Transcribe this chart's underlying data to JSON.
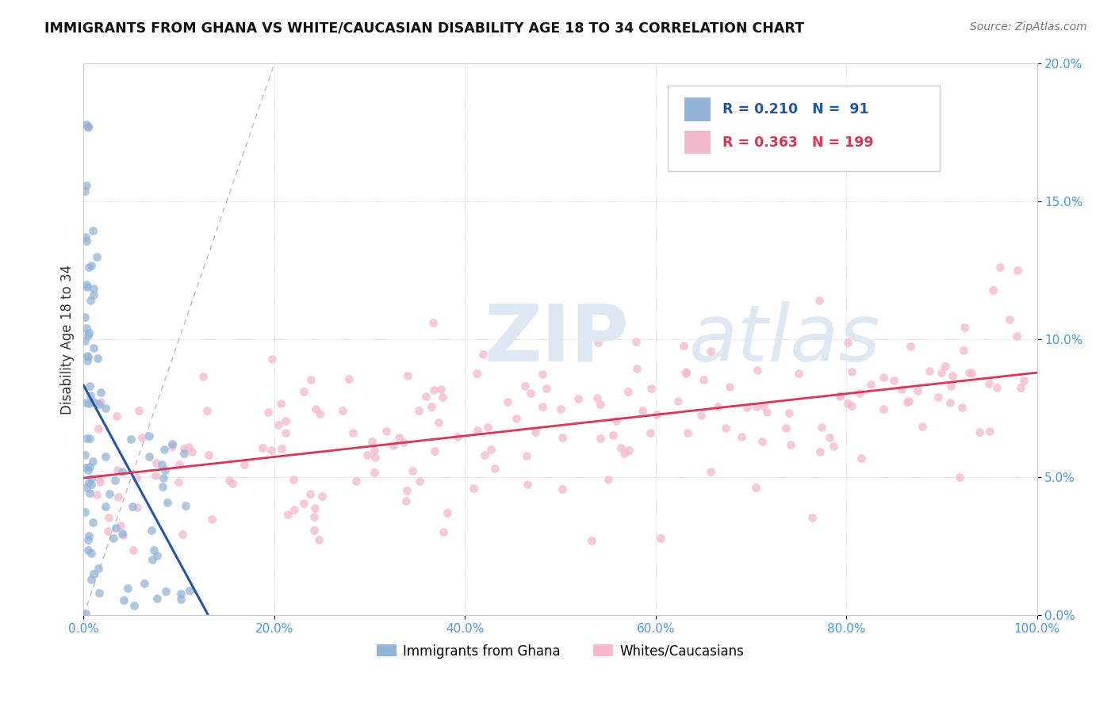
{
  "title": "IMMIGRANTS FROM GHANA VS WHITE/CAUCASIAN DISABILITY AGE 18 TO 34 CORRELATION CHART",
  "source": "Source: ZipAtlas.com",
  "ylabel": "Disability Age 18 to 34",
  "xlim": [
    0,
    1.0
  ],
  "ylim": [
    0,
    0.2
  ],
  "xticks": [
    0.0,
    0.2,
    0.4,
    0.6,
    0.8,
    1.0
  ],
  "xticklabels": [
    "0.0%",
    "20.0%",
    "40.0%",
    "60.0%",
    "80.0%",
    "100.0%"
  ],
  "yticks": [
    0.0,
    0.05,
    0.1,
    0.15,
    0.2
  ],
  "yticklabels": [
    "0.0%",
    "5.0%",
    "10.0%",
    "15.0%",
    "20.0%"
  ],
  "blue_color": "#92B4D8",
  "pink_color": "#F5B8CC",
  "blue_line_color": "#2255AA",
  "pink_line_color": "#DD3355",
  "tick_color": "#4499EE",
  "legend_R1": "0.210",
  "legend_N1": "91",
  "legend_R2": "0.363",
  "legend_N2": "199",
  "legend_label1": "Immigrants from Ghana",
  "legend_label2": "Whites/Caucasians",
  "watermark_zip": "ZIP",
  "watermark_atlas": "atlas"
}
